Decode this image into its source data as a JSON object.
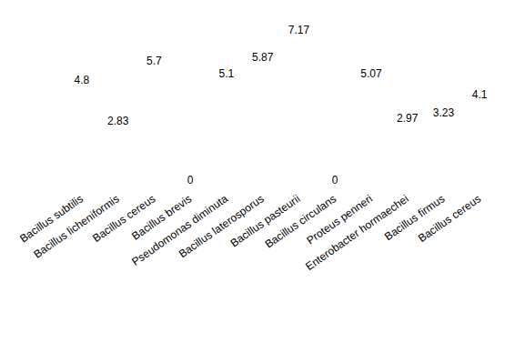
{
  "chart_data": {
    "type": "bar",
    "categories": [
      "Bacillus subtilis",
      "Bacillus licheniformis",
      "Bacillus cereus",
      "Bacillus brevis",
      "Pseudomonas diminuta",
      "Bacillus laterosporus",
      "Bacillus pasteurii",
      "Bacillus circulans",
      "Proteus penneri",
      "Enterobacter hormaechei",
      "Bacillus firmus",
      "Bacillus cereus"
    ],
    "values": [
      4.8,
      2.83,
      5.7,
      0,
      5.1,
      5.87,
      7.17,
      0,
      5.07,
      2.97,
      3.23,
      4.1
    ],
    "color": "#ffffff",
    "ylim": [
      0,
      8
    ],
    "grid": false,
    "data_labels": true,
    "tick_labels": "x"
  }
}
